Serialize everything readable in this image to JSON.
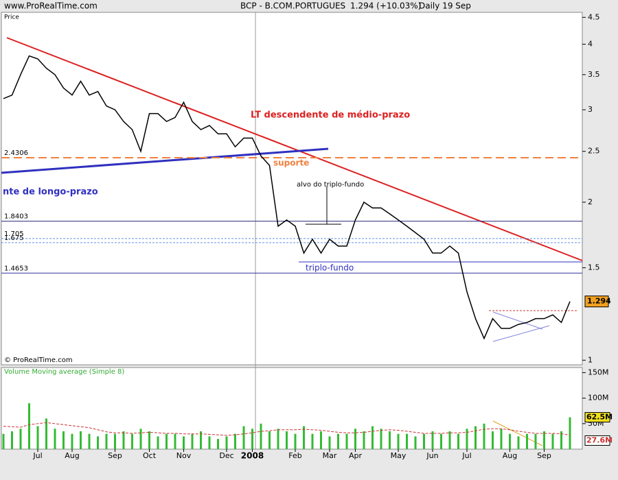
{
  "header": {
    "site": "www.ProRealTime.com",
    "instrument": "BCP - B.COM.PORTUGUES",
    "quote": "1.294 (+10.03%)",
    "period": "Daily  19 Sep"
  },
  "chart_data": [
    {
      "type": "line",
      "y_label": "Price",
      "copyright": "© ProRealTime.com",
      "log_scale": true,
      "ylim": [
        0.98,
        4.6
      ],
      "yticks": [
        1,
        1.5,
        2,
        2.5,
        3,
        3.5,
        4,
        4.5
      ],
      "categories": [
        null,
        null,
        null,
        null,
        "Jul",
        null,
        null,
        null,
        "Aug",
        null,
        null,
        null,
        null,
        "Sep",
        null,
        null,
        null,
        "Oct",
        null,
        null,
        null,
        "Nov",
        null,
        null,
        null,
        null,
        "Dec",
        null,
        null,
        "2008",
        null,
        null,
        null,
        null,
        "Feb",
        null,
        null,
        null,
        "Mar",
        null,
        null,
        "Apr",
        null,
        null,
        null,
        null,
        "May",
        null,
        null,
        null,
        "Jun",
        null,
        null,
        null,
        "Jul",
        null,
        null,
        null,
        null,
        "Aug",
        null,
        null,
        null,
        "Sep",
        null,
        null,
        null
      ],
      "series": [
        {
          "name": "BCP",
          "color": "#000000",
          "values": [
            3.15,
            3.2,
            3.5,
            3.8,
            3.75,
            3.6,
            3.5,
            3.3,
            3.2,
            3.4,
            3.2,
            3.25,
            3.05,
            3.0,
            2.85,
            2.75,
            2.5,
            2.95,
            2.95,
            2.85,
            2.9,
            3.1,
            2.85,
            2.75,
            2.8,
            2.7,
            2.7,
            2.55,
            2.65,
            2.65,
            2.45,
            2.35,
            1.8,
            1.85,
            1.8,
            1.6,
            1.7,
            1.6,
            1.7,
            1.65,
            1.65,
            1.85,
            2.0,
            1.95,
            1.95,
            1.9,
            1.85,
            1.8,
            1.75,
            1.7,
            1.6,
            1.6,
            1.65,
            1.6,
            1.35,
            1.2,
            1.1,
            1.2,
            1.15,
            1.15,
            1.17,
            1.18,
            1.2,
            1.2,
            1.22,
            1.18,
            1.294
          ]
        }
      ],
      "levels": [
        {
          "value": 2.4306,
          "color": "#f08040"
        },
        {
          "value": 1.8403,
          "color": "#303080"
        },
        {
          "value": 1.705,
          "color": "#6090e0"
        },
        {
          "value": 1.675,
          "color": "#6090e0"
        },
        {
          "value": 1.4653,
          "color": "#3030a0"
        }
      ],
      "annotations": [
        "LT descendente de médio-prazo",
        "suporte",
        "alvo do triplo-fundo",
        "triplo-fundo",
        "nte de longo-prazo"
      ]
    },
    {
      "type": "bar",
      "title": "Volume Moving average (Simple 8)",
      "ylim": [
        0,
        160
      ],
      "yticks": [
        {
          "value": 50,
          "label": "50M"
        },
        {
          "value": 100,
          "label": "100M"
        },
        {
          "value": 150,
          "label": "150M"
        }
      ],
      "series": [
        {
          "name": "Volume",
          "color": "#33bb33",
          "value_labels_last": "62.5M",
          "values": [
            30,
            35,
            40,
            90,
            45,
            60,
            40,
            35,
            30,
            35,
            30,
            25,
            30,
            30,
            35,
            30,
            40,
            35,
            25,
            30,
            30,
            25,
            30,
            35,
            25,
            20,
            25,
            30,
            45,
            40,
            50,
            35,
            40,
            35,
            30,
            45,
            30,
            35,
            25,
            30,
            30,
            40,
            35,
            45,
            40,
            35,
            30,
            30,
            25,
            30,
            35,
            30,
            35,
            30,
            40,
            45,
            50,
            35,
            40,
            30,
            25,
            30,
            30,
            35,
            30,
            35,
            62.5
          ]
        },
        {
          "name": "Moving average",
          "color": "#cc3333",
          "value_labels_last": "27.6M",
          "values": [
            45,
            44,
            43,
            48,
            50,
            52,
            50,
            48,
            46,
            44,
            42,
            38,
            34,
            32,
            32,
            31,
            32,
            33,
            32,
            31,
            31,
            30,
            30,
            30,
            29,
            28,
            27,
            28,
            30,
            32,
            35,
            36,
            38,
            38,
            38,
            39,
            38,
            37,
            35,
            33,
            32,
            32,
            33,
            35,
            37,
            38,
            37,
            35,
            33,
            31,
            31,
            31,
            32,
            32,
            33,
            36,
            39,
            40,
            40,
            38,
            35,
            33,
            31,
            31,
            31,
            30,
            27.6
          ]
        }
      ]
    }
  ]
}
